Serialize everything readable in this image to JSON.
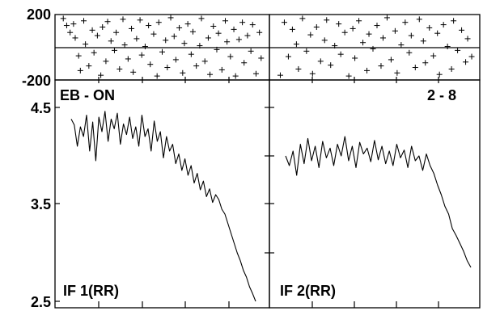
{
  "chart_data": [
    {
      "type": "scatter",
      "panel": "top-left",
      "ylim": [
        -200,
        200
      ],
      "y_ticks": [
        "200",
        "-200"
      ],
      "xlim": [
        0,
        120
      ],
      "reference_line_y": 0,
      "marker": "plus",
      "points": [
        [
          2,
          185
        ],
        [
          4,
          140
        ],
        [
          6,
          95
        ],
        [
          8,
          150
        ],
        [
          9,
          60
        ],
        [
          11,
          -55
        ],
        [
          12,
          -150
        ],
        [
          14,
          170
        ],
        [
          15,
          20
        ],
        [
          17,
          -120
        ],
        [
          19,
          110
        ],
        [
          20,
          -35
        ],
        [
          22,
          75
        ],
        [
          24,
          -180
        ],
        [
          25,
          130
        ],
        [
          27,
          -90
        ],
        [
          28,
          165
        ],
        [
          30,
          40
        ],
        [
          32,
          -20
        ],
        [
          33,
          95
        ],
        [
          35,
          -140
        ],
        [
          37,
          180
        ],
        [
          38,
          15
        ],
        [
          40,
          -75
        ],
        [
          42,
          120
        ],
        [
          43,
          -160
        ],
        [
          45,
          55
        ],
        [
          47,
          175
        ],
        [
          48,
          -50
        ],
        [
          50,
          5
        ],
        [
          52,
          140
        ],
        [
          53,
          -110
        ],
        [
          55,
          85
        ],
        [
          57,
          -185
        ],
        [
          58,
          160
        ],
        [
          60,
          -30
        ],
        [
          62,
          45
        ],
        [
          63,
          -130
        ],
        [
          65,
          190
        ],
        [
          67,
          70
        ],
        [
          68,
          -80
        ],
        [
          70,
          125
        ],
        [
          72,
          -165
        ],
        [
          73,
          25
        ],
        [
          75,
          150
        ],
        [
          77,
          -45
        ],
        [
          78,
          100
        ],
        [
          80,
          -120
        ],
        [
          82,
          10
        ],
        [
          83,
          185
        ],
        [
          85,
          -90
        ],
        [
          87,
          60
        ],
        [
          88,
          -175
        ],
        [
          90,
          135
        ],
        [
          92,
          -15
        ],
        [
          93,
          90
        ],
        [
          95,
          -145
        ],
        [
          97,
          170
        ],
        [
          98,
          35
        ],
        [
          100,
          -60
        ],
        [
          102,
          115
        ],
        [
          103,
          -185
        ],
        [
          105,
          50
        ],
        [
          107,
          160
        ],
        [
          108,
          -100
        ],
        [
          110,
          75
        ],
        [
          112,
          -25
        ],
        [
          113,
          145
        ],
        [
          115,
          -170
        ],
        [
          117,
          95
        ],
        [
          118,
          -70
        ]
      ]
    },
    {
      "type": "scatter",
      "panel": "top-right",
      "ylim": [
        -200,
        200
      ],
      "xlim": [
        0,
        100
      ],
      "reference_line_y": 0,
      "marker": "plus",
      "points": [
        [
          3,
          -180
        ],
        [
          5,
          160
        ],
        [
          7,
          -60
        ],
        [
          9,
          115
        ],
        [
          11,
          20
        ],
        [
          12,
          -140
        ],
        [
          14,
          185
        ],
        [
          16,
          -25
        ],
        [
          18,
          80
        ],
        [
          19,
          -170
        ],
        [
          21,
          130
        ],
        [
          23,
          -90
        ],
        [
          25,
          45
        ],
        [
          26,
          175
        ],
        [
          28,
          -115
        ],
        [
          30,
          10
        ],
        [
          32,
          150
        ],
        [
          33,
          -45
        ],
        [
          35,
          95
        ],
        [
          37,
          -185
        ],
        [
          39,
          120
        ],
        [
          40,
          -70
        ],
        [
          42,
          170
        ],
        [
          44,
          30
        ],
        [
          46,
          -150
        ],
        [
          47,
          85
        ],
        [
          49,
          -10
        ],
        [
          51,
          140
        ],
        [
          53,
          -120
        ],
        [
          54,
          60
        ],
        [
          56,
          190
        ],
        [
          58,
          -80
        ],
        [
          60,
          105
        ],
        [
          61,
          -165
        ],
        [
          63,
          15
        ],
        [
          65,
          160
        ],
        [
          67,
          -35
        ],
        [
          68,
          75
        ],
        [
          70,
          -130
        ],
        [
          72,
          180
        ],
        [
          74,
          40
        ],
        [
          75,
          -100
        ],
        [
          77,
          125
        ],
        [
          79,
          -55
        ],
        [
          81,
          90
        ],
        [
          82,
          -175
        ],
        [
          84,
          145
        ],
        [
          86,
          5
        ],
        [
          88,
          -140
        ],
        [
          89,
          170
        ],
        [
          91,
          -20
        ],
        [
          93,
          110
        ],
        [
          95,
          -95
        ],
        [
          96,
          55
        ],
        [
          98,
          -60
        ]
      ]
    },
    {
      "type": "line",
      "panel": "bottom-left",
      "ylim": [
        2.5,
        4.5
      ],
      "y_ticks": [
        "4.5",
        "3.5",
        "2.5"
      ],
      "xlim": [
        0,
        120
      ],
      "x": [
        0,
        2,
        4,
        6,
        8,
        10,
        12,
        14,
        16,
        18,
        20,
        22,
        24,
        26,
        28,
        30,
        32,
        34,
        36,
        38,
        40,
        42,
        44,
        46,
        48,
        50,
        52,
        54,
        56,
        58,
        60,
        62,
        64,
        66,
        68,
        70,
        72,
        74,
        76,
        78,
        80,
        82,
        84,
        86,
        88,
        90,
        92,
        94,
        96,
        98,
        100,
        102,
        104,
        106,
        108,
        110,
        112,
        114,
        116,
        118,
        120
      ],
      "y": [
        4.38,
        4.32,
        4.1,
        4.3,
        4.2,
        4.42,
        4.05,
        4.35,
        3.95,
        4.4,
        4.25,
        4.46,
        4.15,
        4.38,
        4.28,
        4.44,
        4.12,
        4.33,
        4.22,
        4.4,
        4.18,
        4.3,
        4.1,
        4.42,
        4.2,
        4.28,
        4.05,
        4.36,
        4.15,
        4.25,
        3.98,
        4.2,
        4.05,
        4.12,
        3.92,
        4.02,
        3.85,
        3.97,
        3.8,
        3.9,
        3.72,
        3.82,
        3.65,
        3.74,
        3.58,
        3.66,
        3.52,
        3.6,
        3.55,
        3.45,
        3.4,
        3.3,
        3.2,
        3.1,
        3.0,
        2.92,
        2.82,
        2.75,
        2.65,
        2.58,
        2.5
      ]
    },
    {
      "type": "line",
      "panel": "bottom-right",
      "ylim": [
        2.5,
        4.5
      ],
      "xlim": [
        0,
        100
      ],
      "x": [
        0,
        2,
        4,
        6,
        8,
        10,
        12,
        14,
        16,
        18,
        20,
        22,
        24,
        26,
        28,
        30,
        32,
        34,
        36,
        38,
        40,
        42,
        44,
        46,
        48,
        50,
        52,
        54,
        56,
        58,
        60,
        62,
        64,
        66,
        68,
        70,
        72,
        74,
        76,
        78,
        80,
        82,
        84,
        86,
        88,
        90,
        92,
        94,
        96,
        98,
        100
      ],
      "y": [
        4.0,
        3.9,
        4.05,
        3.8,
        4.12,
        3.92,
        4.18,
        3.95,
        4.1,
        3.88,
        4.15,
        3.98,
        4.08,
        3.9,
        4.12,
        4.0,
        4.2,
        3.95,
        4.1,
        3.88,
        4.14,
        4.02,
        4.08,
        3.94,
        4.16,
        3.96,
        4.1,
        3.92,
        4.05,
        3.9,
        4.12,
        3.98,
        4.06,
        3.88,
        4.1,
        3.95,
        4.0,
        3.85,
        4.02,
        3.9,
        3.82,
        3.7,
        3.6,
        3.48,
        3.4,
        3.25,
        3.18,
        3.1,
        3.02,
        2.92,
        2.85
      ]
    }
  ],
  "labels": {
    "y_top_max": "200",
    "y_top_min": "-200",
    "y_bottom_max": "4.5",
    "y_bottom_mid": "3.5",
    "y_bottom_min": "2.5",
    "left_top_label": "EB - ON",
    "right_top_label": "2 - 8",
    "left_bottom_label": "IF 1(RR)",
    "right_bottom_label": "IF 2(RR)"
  }
}
